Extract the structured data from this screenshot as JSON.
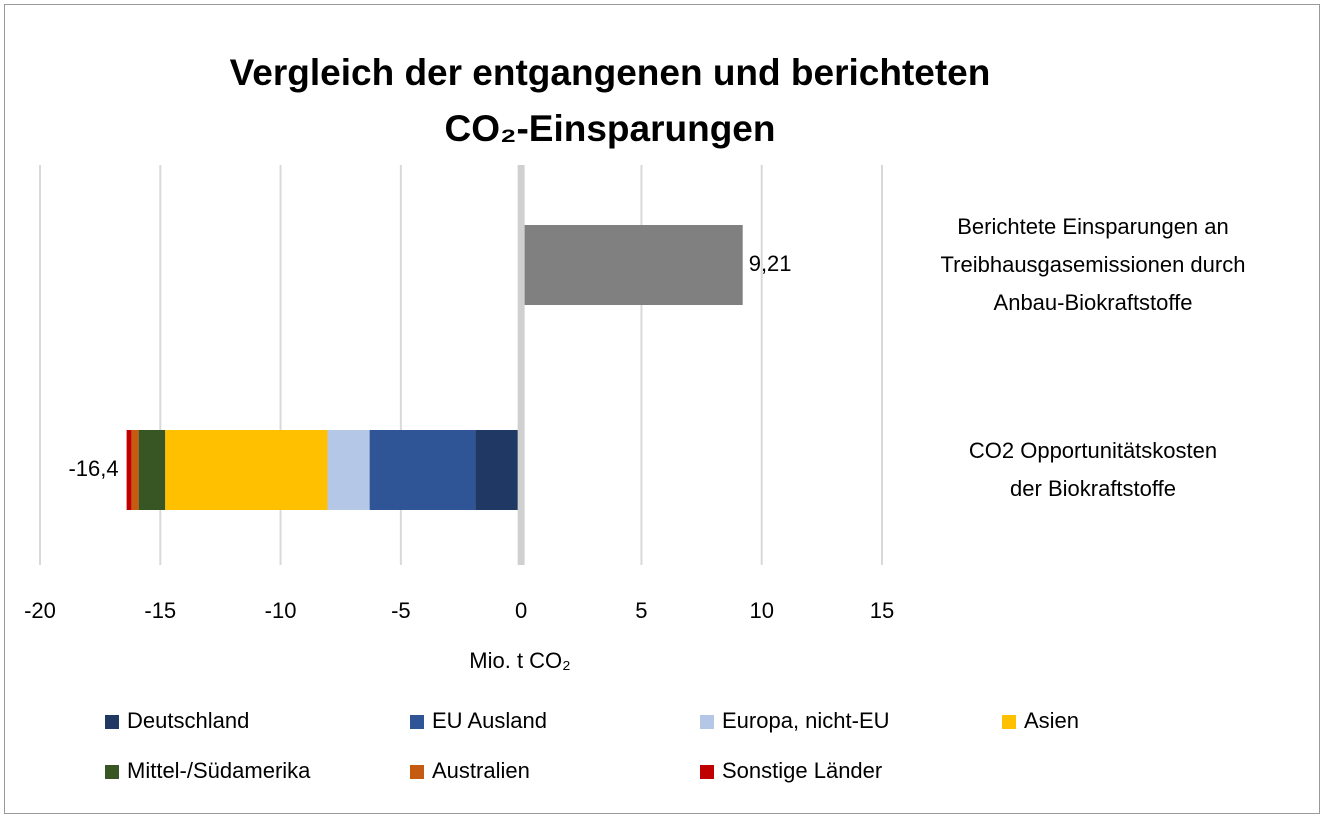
{
  "chart_data": {
    "type": "stacked_barh",
    "title": "Vergleich der entgangenen und berichteten\nCO₂-Einsparungen",
    "xlabel": "Mio. t CO₂",
    "categories": [
      "Berichtete  Einsparungen an\nTreibhausgasemissionen durch\nAnbau-Biokraftstoffe",
      "CO2 Opportunitätskosten\nder Biokraftstoffe"
    ],
    "series": [
      {
        "name": "Deutschland",
        "color": "#203864",
        "values": [
          null,
          -1.9
        ]
      },
      {
        "name": "EU Ausland",
        "color": "#2f5597",
        "values": [
          null,
          -4.4
        ]
      },
      {
        "name": "Europa, nicht-EU",
        "color": "#b4c7e7",
        "values": [
          null,
          -1.75
        ]
      },
      {
        "name": "Asien",
        "color": "#ffc000",
        "values": [
          null,
          -6.75
        ]
      },
      {
        "name": "Mittel-/Südamerika",
        "color": "#375623",
        "values": [
          null,
          -1.1
        ]
      },
      {
        "name": "Australien",
        "color": "#c55a11",
        "values": [
          null,
          -0.3
        ]
      },
      {
        "name": "Sonstige Länder",
        "color": "#c00000",
        "values": [
          null,
          -0.2
        ]
      },
      {
        "color": "#808080",
        "values": [
          9.21,
          null
        ],
        "value_labels": [
          "9,21",
          null
        ]
      }
    ],
    "annotations": [
      {
        "text": "-16,4",
        "value": -16.4,
        "category": 1
      }
    ],
    "xlim": [
      -20,
      15
    ],
    "xticks": [
      -20,
      -15,
      -10,
      -5,
      0,
      5,
      10,
      15
    ],
    "grid": true
  }
}
